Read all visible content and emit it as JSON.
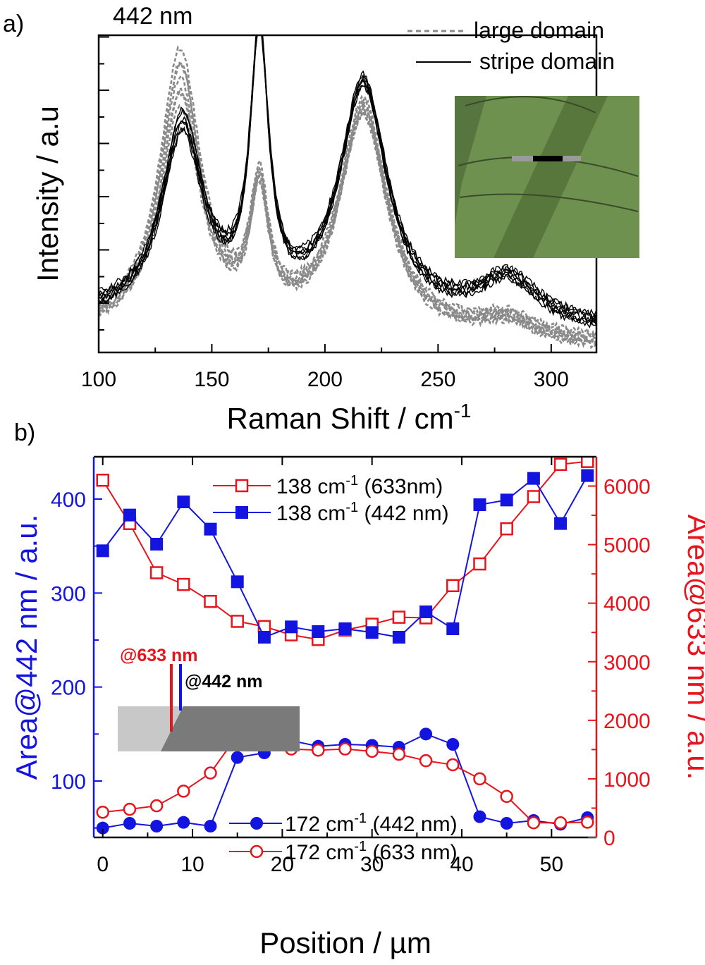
{
  "panel_a": {
    "panel_label": "a)",
    "excitation_label": "442 nm",
    "legend": [
      {
        "label": "large domain",
        "style": "dashed",
        "color": "#8a8a8a"
      },
      {
        "label": "stripe domain",
        "style": "solid",
        "color": "#000000"
      }
    ],
    "inset": {
      "description": "optical micrograph",
      "bg_color": "#6a8c4a",
      "stripe_color": "#55763b"
    }
  },
  "panel_b": {
    "panel_label": "b)",
    "inset": {
      "label_633": "@633 nm",
      "label_442": "@442 nm",
      "color_633": "#e8141c",
      "color_442": "#1414e0"
    }
  },
  "chart_data": [
    {
      "type": "line",
      "title": "",
      "xlabel": "Raman Shift / cm",
      "xlabel_sup": "-1",
      "ylabel": "Intensity / a.u",
      "xlim": [
        100,
        320
      ],
      "ylim": [
        0,
        1
      ],
      "xticks": [
        100,
        150,
        200,
        250,
        300
      ],
      "yticks_unlabeled": true,
      "series": [
        {
          "name": "large domain",
          "style": "dashed",
          "color": "#8a8a8a",
          "peaks": [
            [
              136,
              0.86,
              11
            ],
            [
              171,
              0.4,
              5
            ],
            [
              217,
              0.72,
              13
            ],
            [
              280,
              0.06,
              16
            ]
          ],
          "baseline": 0.08,
          "scales": [
            1.0,
            0.96,
            0.92,
            0.88,
            0.84,
            0.98,
            0.9
          ]
        },
        {
          "name": "stripe domain",
          "style": "solid",
          "color": "#000000",
          "peaks": [
            [
              137,
              0.6,
              11
            ],
            [
              171,
              0.84,
              5
            ],
            [
              217,
              0.74,
              13
            ],
            [
              281,
              0.14,
              16
            ]
          ],
          "baseline": 0.13,
          "scales": [
            1.0,
            0.97,
            0.94,
            1.03,
            0.99,
            0.95,
            1.0
          ]
        }
      ]
    },
    {
      "type": "line",
      "title": "",
      "xlabel": "Position / µm",
      "ylabel": "Area@442 nm / a.u.",
      "ylabel2": "Area@633 nm / a.u.",
      "xlim": [
        -1,
        55
      ],
      "ylim": [
        40,
        445
      ],
      "ylim2": [
        0,
        6500
      ],
      "xticks": [
        0,
        10,
        20,
        30,
        40,
        50
      ],
      "yticks": [
        100,
        200,
        300,
        400
      ],
      "yticks2": [
        0,
        1000,
        2000,
        3000,
        4000,
        5000,
        6000
      ],
      "left_axis_color": "#1414e0",
      "right_axis_color": "#e8141c",
      "x": [
        0,
        3,
        6,
        9,
        12,
        15,
        18,
        21,
        24,
        27,
        30,
        33,
        36,
        39,
        42,
        45,
        48,
        51,
        54
      ],
      "series": [
        {
          "name": "138 cm-1 (633nm)",
          "legend_main": "138 cm",
          "legend_sup": "-1",
          "legend_tail": " (633nm)",
          "axis": "right",
          "marker": "open-square",
          "color": "#e8141c",
          "values": [
            6100,
            5360,
            4520,
            4320,
            4030,
            3690,
            3600,
            3460,
            3380,
            3540,
            3640,
            3760,
            3750,
            4300,
            4670,
            5270,
            5820,
            6370,
            6420
          ]
        },
        {
          "name": "138 cm-1 (442 nm)",
          "legend_main": "138 cm",
          "legend_sup": "-1",
          "legend_tail": " (442 nm)",
          "axis": "left",
          "marker": "filled-square",
          "color": "#1414e0",
          "values": [
            345,
            383,
            352,
            397,
            368,
            312,
            253,
            264,
            259,
            262,
            258,
            253,
            280,
            262,
            394,
            399,
            422,
            374,
            425
          ]
        },
        {
          "name": "172 cm-1 (442 nm)",
          "legend_main": "172 cm",
          "legend_sup": "-1",
          "legend_tail": " (442 nm)",
          "axis": "left",
          "marker": "filled-circle",
          "color": "#1414e0",
          "values": [
            50,
            55,
            52,
            56,
            52,
            125,
            130,
            143,
            137,
            139,
            138,
            136,
            150,
            139,
            62,
            55,
            58,
            54,
            61
          ]
        },
        {
          "name": "172 cm-1 (633 nm)",
          "legend_main": "172 cm",
          "legend_sup": "-1",
          "legend_tail": " (633 nm)",
          "axis": "right",
          "marker": "open-circle",
          "color": "#e8141c",
          "values": [
            430,
            480,
            540,
            790,
            1100,
            1740,
            1640,
            1510,
            1490,
            1510,
            1470,
            1420,
            1310,
            1240,
            1000,
            700,
            250,
            250,
            260
          ]
        }
      ]
    }
  ]
}
